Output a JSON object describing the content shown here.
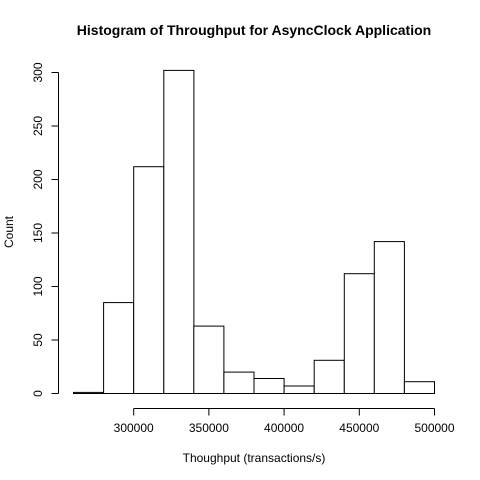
{
  "chart_data": {
    "type": "bar",
    "title": "Histogram of Throughput for AsyncClock Application",
    "xlabel": "Thoughput (transactions/s)",
    "ylabel": "Count",
    "bins": [
      {
        "from": 260000,
        "to": 280000,
        "count": 1
      },
      {
        "from": 280000,
        "to": 300000,
        "count": 85
      },
      {
        "from": 300000,
        "to": 320000,
        "count": 212
      },
      {
        "from": 320000,
        "to": 340000,
        "count": 302
      },
      {
        "from": 340000,
        "to": 360000,
        "count": 63
      },
      {
        "from": 360000,
        "to": 380000,
        "count": 20
      },
      {
        "from": 380000,
        "to": 400000,
        "count": 14
      },
      {
        "from": 400000,
        "to": 420000,
        "count": 7
      },
      {
        "from": 420000,
        "to": 440000,
        "count": 31
      },
      {
        "from": 440000,
        "to": 460000,
        "count": 112
      },
      {
        "from": 460000,
        "to": 480000,
        "count": 142
      },
      {
        "from": 480000,
        "to": 500000,
        "count": 11
      }
    ],
    "xlim": [
      260000,
      500000
    ],
    "ylim": [
      0,
      300
    ],
    "x_ticks": [
      300000,
      350000,
      400000,
      450000,
      500000
    ],
    "x_tick_labels": [
      "300000",
      "350000",
      "400000",
      "450000",
      "500000"
    ],
    "y_ticks": [
      0,
      50,
      100,
      150,
      200,
      250,
      300
    ],
    "y_tick_labels": [
      "0",
      "50",
      "100",
      "150",
      "200",
      "250",
      "300"
    ],
    "grid": false,
    "legend": "none"
  }
}
